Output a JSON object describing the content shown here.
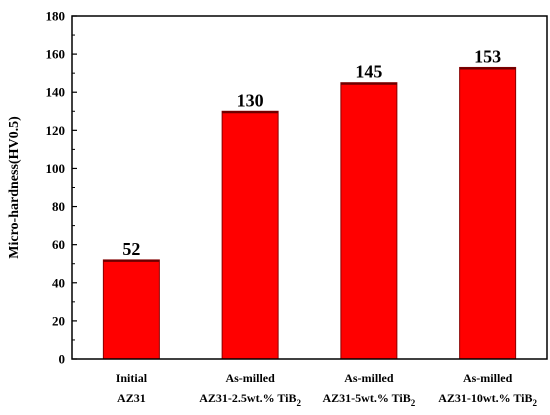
{
  "chart_data": {
    "type": "bar",
    "title": "",
    "xlabel": "",
    "ylabel": "Micro-hardness(HV0.5)",
    "ylim": [
      0,
      180
    ],
    "yticks": [
      0,
      20,
      40,
      60,
      80,
      100,
      120,
      140,
      160,
      180
    ],
    "grid": false,
    "legend": "none",
    "bar_color": "#ff0000",
    "categories": [
      {
        "line1": "Initial",
        "line2": "AZ31",
        "line2_sub": ""
      },
      {
        "line1": "As-milled",
        "line2": "AZ31-2.5wt.% TiB",
        "line2_sub": "2"
      },
      {
        "line1": "As-milled",
        "line2": "AZ31-5wt.% TiB",
        "line2_sub": "2"
      },
      {
        "line1": "As-milled",
        "line2": "AZ31-10wt.% TiB",
        "line2_sub": "2"
      }
    ],
    "values": [
      52,
      130,
      145,
      153
    ],
    "value_labels": [
      "52",
      "130",
      "145",
      "153"
    ]
  }
}
